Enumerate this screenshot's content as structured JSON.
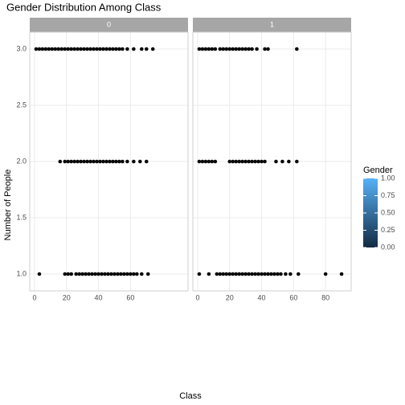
{
  "title": "Gender Distribution Among Class",
  "x_label": "Class",
  "y_label": "Number of People",
  "legend": {
    "title": "Gender",
    "low_color": "#132B43",
    "high_color": "#56B1F7",
    "lim": [
      0,
      1
    ],
    "ticks": [
      {
        "value": 0,
        "label": "0.00"
      },
      {
        "value": 0.25,
        "label": "0.25"
      },
      {
        "value": 0.5,
        "label": "0.50"
      },
      {
        "value": 0.75,
        "label": "0.75"
      },
      {
        "value": 1,
        "label": "1.00"
      }
    ]
  },
  "chart_data": [
    {
      "type": "scatter",
      "facet": "0",
      "color": "#0a0a0a",
      "xlim": [
        -3,
        96
      ],
      "ylim": [
        0.85,
        3.15
      ],
      "xticks": [
        0,
        20,
        40,
        60
      ],
      "yticks": [
        {
          "value": 1,
          "label": "1.0"
        },
        1.5,
        {
          "value": 2,
          "label": "2.0"
        },
        2.5,
        {
          "value": 3,
          "label": "3.0"
        }
      ],
      "grid": true,
      "x": [
        1,
        3,
        5,
        7,
        9,
        11,
        13,
        15,
        17,
        19,
        21,
        23,
        25,
        27,
        29,
        31,
        33,
        35,
        37,
        39,
        41,
        43,
        45,
        47,
        49,
        51,
        53,
        55,
        58,
        62,
        67,
        70,
        74,
        16,
        19,
        21,
        23,
        25,
        27,
        29,
        31,
        33,
        35,
        37,
        39,
        41,
        43,
        45,
        47,
        49,
        51,
        53,
        55,
        58,
        62,
        66,
        70,
        3,
        19,
        21,
        23,
        26,
        28,
        30,
        32,
        34,
        36,
        38,
        40,
        42,
        44,
        46,
        48,
        50,
        52,
        54,
        56,
        58,
        60,
        62,
        64,
        67,
        71
      ],
      "values": [
        3,
        3,
        3,
        3,
        3,
        3,
        3,
        3,
        3,
        3,
        3,
        3,
        3,
        3,
        3,
        3,
        3,
        3,
        3,
        3,
        3,
        3,
        3,
        3,
        3,
        3,
        3,
        3,
        3,
        3,
        3,
        3,
        3,
        2,
        2,
        2,
        2,
        2,
        2,
        2,
        2,
        2,
        2,
        2,
        2,
        2,
        2,
        2,
        2,
        2,
        2,
        2,
        2,
        2,
        2,
        2,
        2,
        1,
        1,
        1,
        1,
        1,
        1,
        1,
        1,
        1,
        1,
        1,
        1,
        1,
        1,
        1,
        1,
        1,
        1,
        1,
        1,
        1,
        1,
        1,
        1,
        1,
        1
      ]
    },
    {
      "type": "scatter",
      "facet": "1",
      "color": "#0a0a0a",
      "xlim": [
        -3,
        96
      ],
      "ylim": [
        0.85,
        3.15
      ],
      "xticks": [
        0,
        20,
        40,
        60,
        80
      ],
      "yticks": [
        {
          "value": 1,
          "label": "1.0"
        },
        1.5,
        {
          "value": 2,
          "label": "2.0"
        },
        2.5,
        {
          "value": 3,
          "label": "3.0"
        }
      ],
      "grid": true,
      "x": [
        1,
        3,
        5,
        7,
        9,
        11,
        14,
        16,
        18,
        20,
        22,
        24,
        26,
        28,
        30,
        32,
        34,
        37,
        42,
        44,
        62,
        1,
        3,
        5,
        7,
        9,
        11,
        20,
        22,
        24,
        26,
        28,
        30,
        32,
        34,
        36,
        38,
        40,
        42,
        49,
        53,
        57,
        62,
        1,
        7,
        12,
        14,
        16,
        18,
        20,
        22,
        24,
        26,
        28,
        30,
        32,
        34,
        36,
        38,
        40,
        42,
        44,
        46,
        48,
        50,
        52,
        55,
        58,
        63,
        80,
        90
      ],
      "values": [
        3,
        3,
        3,
        3,
        3,
        3,
        3,
        3,
        3,
        3,
        3,
        3,
        3,
        3,
        3,
        3,
        3,
        3,
        3,
        3,
        3,
        2,
        2,
        2,
        2,
        2,
        2,
        2,
        2,
        2,
        2,
        2,
        2,
        2,
        2,
        2,
        2,
        2,
        2,
        2,
        2,
        2,
        2,
        1,
        1,
        1,
        1,
        1,
        1,
        1,
        1,
        1,
        1,
        1,
        1,
        1,
        1,
        1,
        1,
        1,
        1,
        1,
        1,
        1,
        1,
        1,
        1,
        1,
        1,
        1,
        1
      ]
    }
  ]
}
